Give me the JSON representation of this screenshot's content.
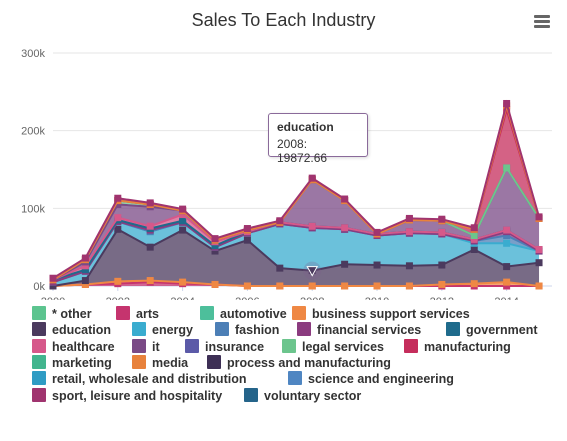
{
  "title": "Sales To Each Industry",
  "menu_icon": "hamburger-menu-icon",
  "tooltip": {
    "series": "education",
    "text": "2008: 19872.66"
  },
  "chart_data": {
    "type": "area",
    "stacked": true,
    "title": "Sales To Each Industry",
    "x": [
      2000,
      2001,
      2002,
      2003,
      2004,
      2005,
      2006,
      2007,
      2008,
      2009,
      2010,
      2011,
      2012,
      2013,
      2014,
      2015
    ],
    "x_ticks": [
      "2000",
      "2002",
      "2004",
      "2006",
      "2008",
      "2010",
      "2012",
      "2014"
    ],
    "xlim": [
      2000,
      2015.4
    ],
    "y_ticks": [
      "0k",
      "100k",
      "200k",
      "300k"
    ],
    "ylim": [
      0,
      300000
    ],
    "grid": true,
    "legend_position": "bottom",
    "series": [
      {
        "name": "* other",
        "color": "#5cc48f",
        "values": [
          0,
          0,
          0,
          0,
          0,
          0,
          0,
          0,
          0,
          0,
          0,
          0,
          0,
          0,
          0,
          0
        ]
      },
      {
        "name": "arts",
        "color": "#c5346e",
        "values": [
          0,
          2000,
          3000,
          5000,
          3000,
          2000,
          0,
          0,
          0,
          0,
          0,
          0,
          0,
          0,
          0,
          0
        ]
      },
      {
        "name": "automotive",
        "color": "#4dbf9b",
        "values": [
          0,
          0,
          0,
          0,
          0,
          0,
          0,
          0,
          0,
          0,
          0,
          0,
          0,
          0,
          0,
          0
        ]
      },
      {
        "name": "business support services",
        "color": "#ef8844",
        "values": [
          0,
          0,
          3000,
          2000,
          2000,
          0,
          0,
          0,
          0,
          0,
          0,
          0,
          2000,
          3000,
          5000,
          0
        ]
      },
      {
        "name": "education",
        "color": "#4b3a5e",
        "values": [
          0,
          5000,
          67000,
          43000,
          67000,
          43000,
          59000,
          23000,
          19872.66,
          28000,
          27000,
          26000,
          25000,
          44000,
          20000,
          30000
        ]
      },
      {
        "name": "energy",
        "color": "#3aaccf",
        "values": [
          5000,
          12000,
          10000,
          20000,
          10000,
          5000,
          9000,
          57000,
          55000,
          45000,
          38000,
          42000,
          40000,
          8000,
          30000,
          15000
        ]
      },
      {
        "name": "fashion",
        "color": "#4c7fb6",
        "values": [
          0,
          0,
          0,
          0,
          0,
          0,
          0,
          0,
          0,
          0,
          0,
          0,
          0,
          3000,
          10000,
          0
        ]
      },
      {
        "name": "financial services",
        "color": "#8b3b7f",
        "values": [
          0,
          0,
          0,
          2000,
          0,
          0,
          0,
          0,
          0,
          0,
          0,
          0,
          0,
          0,
          5000,
          0
        ]
      },
      {
        "name": "government",
        "color": "#1f6b8c",
        "values": [
          3000,
          2000,
          2000,
          2000,
          2000,
          2000,
          2000,
          2000,
          2000,
          2000,
          2000,
          2000,
          2000,
          2000,
          2000,
          2000
        ]
      },
      {
        "name": "healthcare",
        "color": "#d6588a",
        "values": [
          0,
          5000,
          3000,
          3000,
          8000,
          5000,
          0,
          0,
          0,
          0,
          0,
          0,
          0,
          0,
          0,
          0
        ]
      },
      {
        "name": "it",
        "color": "#7a4a86",
        "values": [
          0,
          5000,
          17000,
          25000,
          5000,
          2000,
          2000,
          0,
          60000,
          35000,
          0,
          15000,
          15000,
          5000,
          80000,
          40000
        ]
      },
      {
        "name": "insurance",
        "color": "#5b5aa8",
        "values": [
          0,
          0,
          0,
          0,
          0,
          0,
          0,
          0,
          0,
          0,
          0,
          0,
          0,
          0,
          0,
          0
        ]
      },
      {
        "name": "legal services",
        "color": "#6cc58d",
        "values": [
          0,
          3000,
          5000,
          3000,
          0,
          0,
          0,
          0,
          0,
          0,
          0,
          0,
          0,
          0,
          0,
          0
        ]
      },
      {
        "name": "manufacturing",
        "color": "#c52d5c",
        "values": [
          0,
          0,
          0,
          0,
          0,
          0,
          0,
          0,
          0,
          0,
          0,
          0,
          0,
          8000,
          75000,
          0
        ]
      },
      {
        "name": "marketing",
        "color": "#42b58e",
        "values": [
          0,
          0,
          0,
          0,
          0,
          0,
          0,
          0,
          0,
          0,
          0,
          0,
          0,
          0,
          0,
          0
        ]
      },
      {
        "name": "media",
        "color": "#e8823c",
        "values": [
          0,
          0,
          0,
          0,
          0,
          0,
          0,
          0,
          0,
          0,
          0,
          0,
          0,
          0,
          5000,
          0
        ]
      },
      {
        "name": "process and manufacturing",
        "color": "#3d2f55",
        "values": [
          0,
          0,
          0,
          0,
          0,
          0,
          0,
          0,
          0,
          0,
          0,
          0,
          0,
          0,
          0,
          0
        ]
      },
      {
        "name": "retail, wholesale and distribution",
        "color": "#2f9cc4",
        "values": [
          0,
          0,
          0,
          0,
          0,
          0,
          0,
          0,
          0,
          0,
          0,
          0,
          0,
          0,
          0,
          0
        ]
      },
      {
        "name": "science and engineering",
        "color": "#4f86c2",
        "values": [
          0,
          0,
          0,
          0,
          0,
          0,
          0,
          0,
          0,
          0,
          0,
          0,
          0,
          0,
          0,
          0
        ]
      },
      {
        "name": "sport, leisure and hospitality",
        "color": "#a0346f",
        "values": [
          2000,
          2000,
          3000,
          2000,
          2000,
          2000,
          2000,
          2000,
          2000,
          2000,
          2000,
          2000,
          2000,
          2000,
          3000,
          2000
        ]
      },
      {
        "name": "voluntary sector",
        "color": "#25648a",
        "values": [
          0,
          0,
          0,
          0,
          0,
          0,
          0,
          0,
          0,
          0,
          0,
          0,
          0,
          0,
          0,
          0
        ]
      }
    ]
  }
}
